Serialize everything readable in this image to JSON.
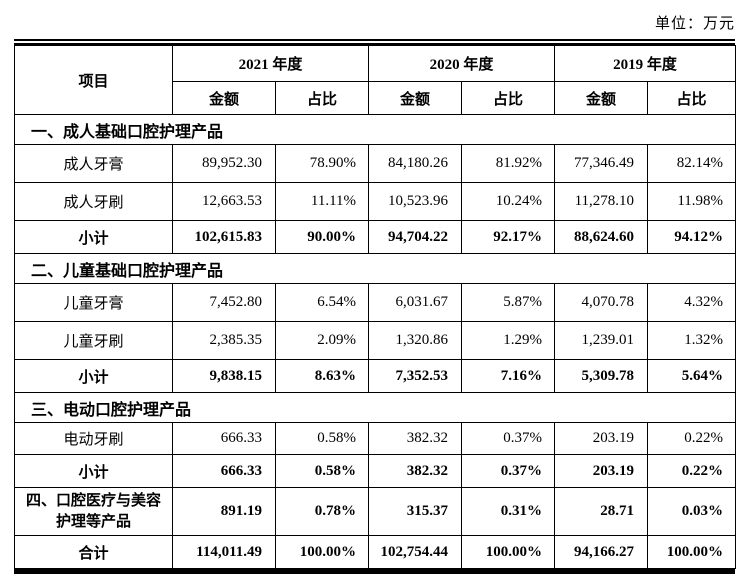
{
  "unit_label": "单位：万元",
  "header": {
    "item": "项目",
    "year_2021": "2021 年度",
    "year_2020": "2020 年度",
    "year_2019": "2019 年度",
    "amount": "金额",
    "ratio": "占比"
  },
  "rows": [
    {
      "type": "section",
      "label": "一、成人基础口腔护理产品",
      "values": []
    },
    {
      "type": "data",
      "label": "成人牙膏",
      "values": [
        "89,952.30",
        "78.90%",
        "84,180.26",
        "81.92%",
        "77,346.49",
        "82.14%"
      ]
    },
    {
      "type": "data",
      "label": "成人牙刷",
      "values": [
        "12,663.53",
        "11.11%",
        "10,523.96",
        "10.24%",
        "11,278.10",
        "11.98%"
      ]
    },
    {
      "type": "subtotal",
      "label": "小计",
      "values": [
        "102,615.83",
        "90.00%",
        "94,704.22",
        "92.17%",
        "88,624.60",
        "94.12%"
      ]
    },
    {
      "type": "section",
      "label": "二、儿童基础口腔护理产品",
      "values": []
    },
    {
      "type": "data",
      "label": "儿童牙膏",
      "values": [
        "7,452.80",
        "6.54%",
        "6,031.67",
        "5.87%",
        "4,070.78",
        "4.32%"
      ]
    },
    {
      "type": "data",
      "label": "儿童牙刷",
      "values": [
        "2,385.35",
        "2.09%",
        "1,320.86",
        "1.29%",
        "1,239.01",
        "1.32%"
      ]
    },
    {
      "type": "subtotal",
      "label": "小计",
      "values": [
        "9,838.15",
        "8.63%",
        "7,352.53",
        "7.16%",
        "5,309.78",
        "5.64%"
      ]
    },
    {
      "type": "section",
      "label": "三、电动口腔护理产品",
      "values": []
    },
    {
      "type": "data",
      "label": "电动牙刷",
      "values": [
        "666.33",
        "0.58%",
        "382.32",
        "0.37%",
        "203.19",
        "0.22%"
      ]
    },
    {
      "type": "subtotal",
      "label": "小计",
      "values": [
        "666.33",
        "0.58%",
        "382.32",
        "0.37%",
        "203.19",
        "0.22%"
      ]
    },
    {
      "type": "groupfour",
      "label": "四、口腔医疗与美容护理等产品",
      "values": [
        "891.19",
        "0.78%",
        "315.37",
        "0.31%",
        "28.71",
        "0.03%"
      ]
    },
    {
      "type": "total",
      "label": "合计",
      "values": [
        "114,011.49",
        "100.00%",
        "102,754.44",
        "100.00%",
        "94,166.27",
        "100.00%"
      ]
    }
  ]
}
